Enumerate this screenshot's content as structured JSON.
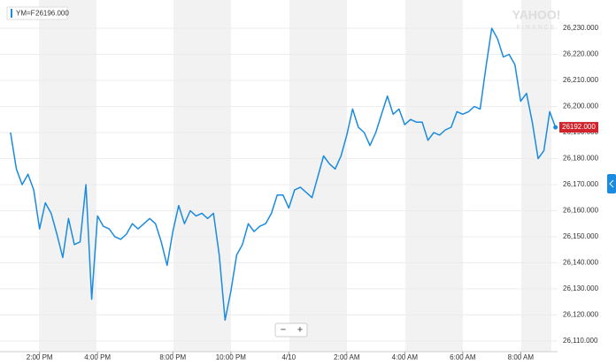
{
  "chart_data": {
    "type": "line",
    "series": [
      {
        "name": "YM=F",
        "color": "#1a8bde",
        "values": [
          26190,
          26176,
          26170,
          26174,
          26168,
          26153,
          26163,
          26159,
          26151,
          26142,
          26157,
          26147,
          26148,
          26170,
          26126,
          26158,
          26154,
          26153,
          26150,
          26149,
          26151,
          26155,
          26153,
          26155,
          26157,
          26155,
          26148,
          26139,
          26152,
          26162,
          26155,
          26160,
          26158,
          26159,
          26157,
          26159,
          26143,
          26118,
          26129,
          26143,
          26147,
          26155,
          26152,
          26154,
          26155,
          26159,
          26166,
          26166,
          26161,
          26168,
          26169,
          26167,
          26165,
          26173,
          26181,
          26178,
          26176,
          26181,
          26189,
          26199,
          26192,
          26190,
          26185,
          26190,
          26197,
          26204,
          26197,
          26199,
          26193,
          26195,
          26194,
          26194,
          26187,
          26190,
          26189,
          26191,
          26192,
          26198,
          26197,
          26198,
          26200,
          26199,
          26215,
          26230,
          26226,
          26219,
          26220,
          26216,
          26202,
          26205,
          26194,
          26180,
          26183,
          26198,
          26192
        ]
      }
    ],
    "categories": [
      null,
      null,
      null,
      null,
      null,
      "2:00 PM",
      null,
      null,
      null,
      null,
      null,
      null,
      null,
      null,
      null,
      "4:00 PM",
      null,
      null,
      null,
      null,
      null,
      null,
      null,
      null,
      null,
      null,
      null,
      null,
      "8:00 PM",
      null,
      null,
      null,
      null,
      null,
      null,
      null,
      null,
      null,
      "10:00 PM",
      null,
      null,
      null,
      null,
      null,
      null,
      null,
      null,
      null,
      "4/10",
      null,
      null,
      null,
      null,
      null,
      null,
      null,
      null,
      null,
      "2:00 AM",
      null,
      null,
      null,
      null,
      null,
      null,
      null,
      null,
      null,
      "4:00 AM",
      null,
      null,
      null,
      null,
      null,
      null,
      null,
      null,
      null,
      "6:00 AM",
      null,
      null,
      null,
      null,
      null,
      null,
      null,
      null,
      null,
      "8:00 AM",
      null,
      null,
      null,
      null,
      null,
      null
    ],
    "ylim": [
      26105.9,
      26239.5
    ],
    "yticks": [
      {
        "value": 26230,
        "label": "26,230.000"
      },
      {
        "value": 26220,
        "label": "26,220.000"
      },
      {
        "value": 26210,
        "label": "26,210.000"
      },
      {
        "value": 26200,
        "label": "26,200.000"
      },
      {
        "value": 26190,
        "label": "26,190.000"
      },
      {
        "value": 26180,
        "label": "26,180.000"
      },
      {
        "value": 26170,
        "label": "26,170.000"
      },
      {
        "value": 26160,
        "label": "26,160.000"
      },
      {
        "value": 26150,
        "label": "26,150.000"
      },
      {
        "value": 26140,
        "label": "26,140.000"
      },
      {
        "value": 26130,
        "label": "26,130.000"
      },
      {
        "value": 26120,
        "label": "26,120.000"
      },
      {
        "value": 26110,
        "label": "26,110.000"
      }
    ],
    "grid": true,
    "legend_value": {
      "value": 26196,
      "label": "26196.000"
    },
    "last_price": {
      "value": 26192,
      "label": "26192.000"
    },
    "watermark": [
      "YAHOO!",
      "FINANCE"
    ],
    "zoom": [
      "−",
      "+"
    ]
  }
}
